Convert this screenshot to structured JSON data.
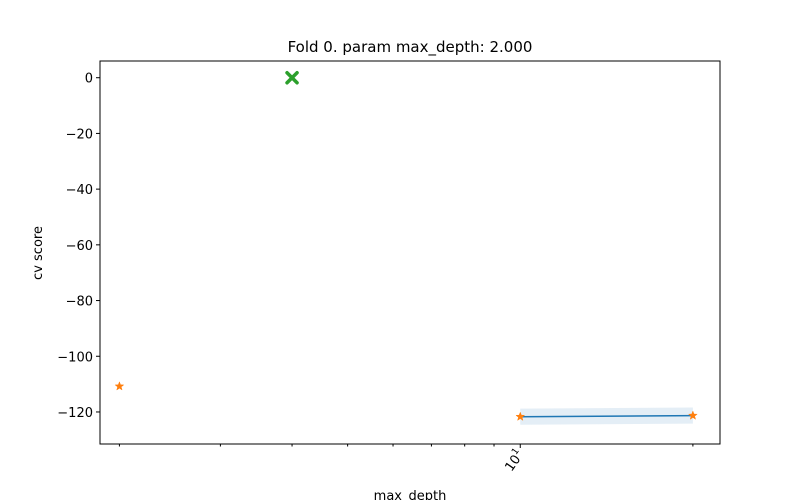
{
  "chart_data": {
    "type": "line",
    "title": "Fold 0. param max_depth: 2.000",
    "xlabel": "max_depth",
    "ylabel": "cv score",
    "x_scale": "log",
    "xlim": [
      1.85,
      22.3
    ],
    "ylim": [
      -131.5,
      6
    ],
    "y_ticks": [
      0,
      -20,
      -40,
      -60,
      -80,
      -100,
      -120
    ],
    "x_major_ticks": [
      {
        "value": 10,
        "label": "10",
        "exponent": "1"
      }
    ],
    "x_minor_ticks": [
      2,
      3,
      4,
      5,
      6,
      7,
      8,
      9,
      20
    ],
    "grid": false,
    "series": [
      {
        "kind": "line",
        "color": "#1f77b4",
        "x": [
          10,
          20
        ],
        "y": [
          -121.7,
          -121.3
        ]
      },
      {
        "kind": "band",
        "color": "#1f77b4",
        "x": [
          10,
          20
        ],
        "y_low": [
          -124.6,
          -124.2
        ],
        "y_high": [
          -118.8,
          -118.4
        ]
      },
      {
        "kind": "scatter",
        "marker": "star",
        "color": "#ff7f0e",
        "x": [
          2,
          10,
          20
        ],
        "y": [
          -110.8,
          -121.7,
          -121.3
        ]
      },
      {
        "kind": "scatter",
        "marker": "x",
        "color": "#2ca02c",
        "x": [
          4
        ],
        "y": [
          0
        ]
      }
    ]
  }
}
